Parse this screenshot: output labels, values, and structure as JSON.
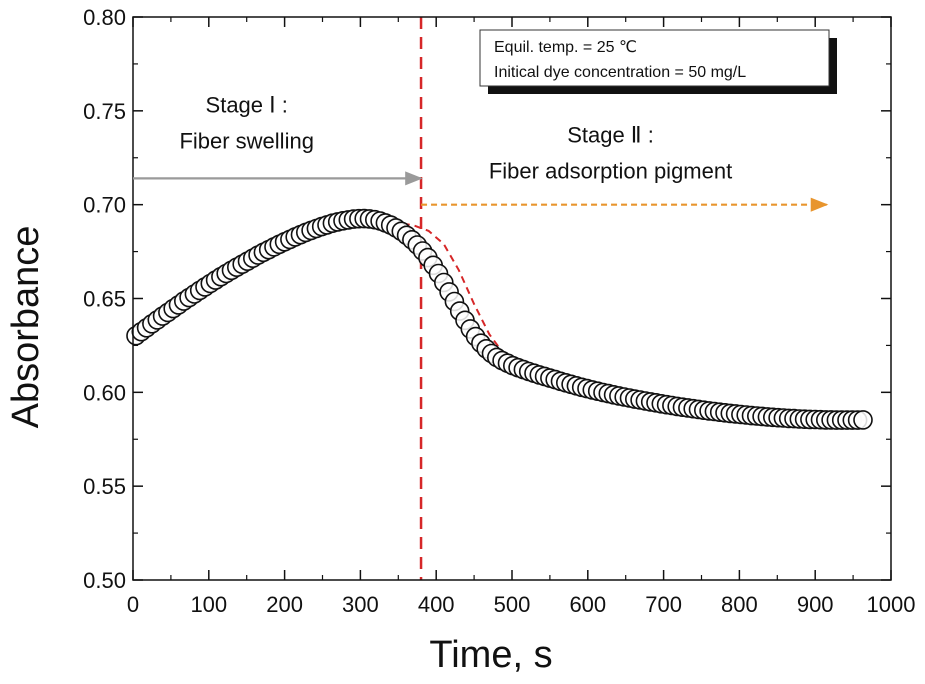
{
  "chart_data": {
    "type": "scatter",
    "title": "",
    "xlabel": "Time, s",
    "ylabel": "Absorbance",
    "xlim": [
      0,
      1000
    ],
    "ylim": [
      0.5,
      0.8
    ],
    "x_ticks": [
      "0",
      "100",
      "200",
      "300",
      "400",
      "500",
      "600",
      "700",
      "800",
      "900",
      "1000"
    ],
    "y_ticks": [
      "0.50",
      "0.55",
      "0.60",
      "0.65",
      "0.70",
      "0.75",
      "0.80"
    ],
    "grid": false,
    "series": [
      {
        "marker": "open-circle",
        "color": "#111111",
        "x": [
          4,
          11,
          18,
          25,
          32,
          39,
          46,
          53,
          60,
          67,
          74,
          81,
          88,
          95,
          102,
          109,
          116,
          123,
          130,
          137,
          144,
          151,
          158,
          165,
          172,
          179,
          186,
          193,
          200,
          207,
          214,
          221,
          228,
          235,
          242,
          249,
          256,
          263,
          270,
          277,
          284,
          291,
          298,
          305,
          312,
          319,
          326,
          333,
          340,
          347,
          354,
          361,
          368,
          375,
          382,
          389,
          396,
          403,
          410,
          417,
          424,
          431,
          438,
          445,
          452,
          459,
          466,
          473,
          480,
          487,
          494,
          501,
          508,
          515,
          522,
          529,
          536,
          543,
          550,
          557,
          564,
          571,
          578,
          585,
          592,
          599,
          606,
          613,
          620,
          627,
          634,
          641,
          648,
          655,
          662,
          669,
          676,
          683,
          690,
          697,
          704,
          711,
          718,
          725,
          732,
          739,
          746,
          753,
          760,
          767,
          774,
          781,
          788,
          795,
          802,
          809,
          816,
          823,
          830,
          837,
          844,
          851,
          858,
          865,
          872,
          879,
          886,
          893,
          900,
          907,
          914,
          921,
          928,
          935,
          942,
          949,
          956,
          963
        ],
        "y": [
          0.6302,
          0.6323,
          0.6344,
          0.6365,
          0.6386,
          0.6406,
          0.6426,
          0.6446,
          0.6466,
          0.6486,
          0.6505,
          0.6524,
          0.6543,
          0.6562,
          0.658,
          0.6598,
          0.6616,
          0.6633,
          0.665,
          0.6667,
          0.6683,
          0.6699,
          0.6715,
          0.6731,
          0.6746,
          0.676,
          0.6775,
          0.6789,
          0.6802,
          0.6815,
          0.6828,
          0.684,
          0.6852,
          0.6863,
          0.6873,
          0.6883,
          0.6892,
          0.6901,
          0.6908,
          0.6914,
          0.6919,
          0.6923,
          0.6925,
          0.6926,
          0.6924,
          0.692,
          0.6913,
          0.6903,
          0.6891,
          0.6876,
          0.6858,
          0.6837,
          0.6813,
          0.6785,
          0.6753,
          0.6718,
          0.6677,
          0.6633,
          0.6585,
          0.6535,
          0.6484,
          0.6433,
          0.6384,
          0.6338,
          0.6297,
          0.6262,
          0.6232,
          0.6207,
          0.6186,
          0.6169,
          0.6155,
          0.6142,
          0.6131,
          0.6121,
          0.6111,
          0.6102,
          0.6093,
          0.6085,
          0.6076,
          0.6068,
          0.6059,
          0.6051,
          0.6043,
          0.6035,
          0.6027,
          0.602,
          0.6013,
          0.6006,
          0.5999,
          0.5993,
          0.5987,
          0.5981,
          0.5975,
          0.597,
          0.5964,
          0.5959,
          0.5954,
          0.5949,
          0.5944,
          0.5939,
          0.5934,
          0.593,
          0.5925,
          0.5921,
          0.5917,
          0.5913,
          0.5909,
          0.5905,
          0.5901,
          0.5898,
          0.5894,
          0.5891,
          0.5888,
          0.5885,
          0.5882,
          0.5879,
          0.5876,
          0.5874,
          0.5872,
          0.5869,
          0.5867,
          0.5865,
          0.5863,
          0.5861,
          0.586,
          0.5858,
          0.5857,
          0.5856,
          0.5855,
          0.5854,
          0.5853,
          0.5853,
          0.5852,
          0.5852,
          0.5852,
          0.5852,
          0.5852,
          0.5853
        ]
      }
    ],
    "fit_curve": {
      "style": "dashed",
      "color": "#d62728",
      "x": [
        0,
        50,
        100,
        150,
        200,
        250,
        300,
        340,
        370,
        390,
        410,
        430,
        450,
        470,
        490,
        510,
        530,
        560,
        600,
        650,
        700,
        750,
        800,
        850,
        900,
        965
      ],
      "y": [
        0.628,
        0.642,
        0.655,
        0.667,
        0.677,
        0.685,
        0.69,
        0.691,
        0.689,
        0.686,
        0.679,
        0.665,
        0.647,
        0.631,
        0.62,
        0.614,
        0.611,
        0.607,
        0.603,
        0.599,
        0.596,
        0.593,
        0.591,
        0.589,
        0.587,
        0.585
      ]
    },
    "vertical_line": {
      "x": 380,
      "color": "#d62728"
    },
    "legend": {
      "placement": "top-right",
      "lines": [
        "Equil. temp. = 25 ℃",
        "Initical dye concentration = 50 mg/L"
      ]
    },
    "annotations": [
      {
        "text": "Stage Ⅰ :",
        "x": 150,
        "y": 0.749
      },
      {
        "text": "Fiber swelling",
        "x": 150,
        "y": 0.73
      },
      {
        "text": "Stage Ⅱ :",
        "x": 630,
        "y": 0.733
      },
      {
        "text": "Fiber adsorption pigment",
        "x": 630,
        "y": 0.714
      }
    ],
    "arrows": [
      {
        "x_from": 0,
        "x_to": 380,
        "y": 0.714,
        "color": "#9a9a9a",
        "style": "solid"
      },
      {
        "x_from": 380,
        "x_to": 915,
        "y": 0.7,
        "color": "#e8952e",
        "style": "dashed"
      }
    ]
  }
}
